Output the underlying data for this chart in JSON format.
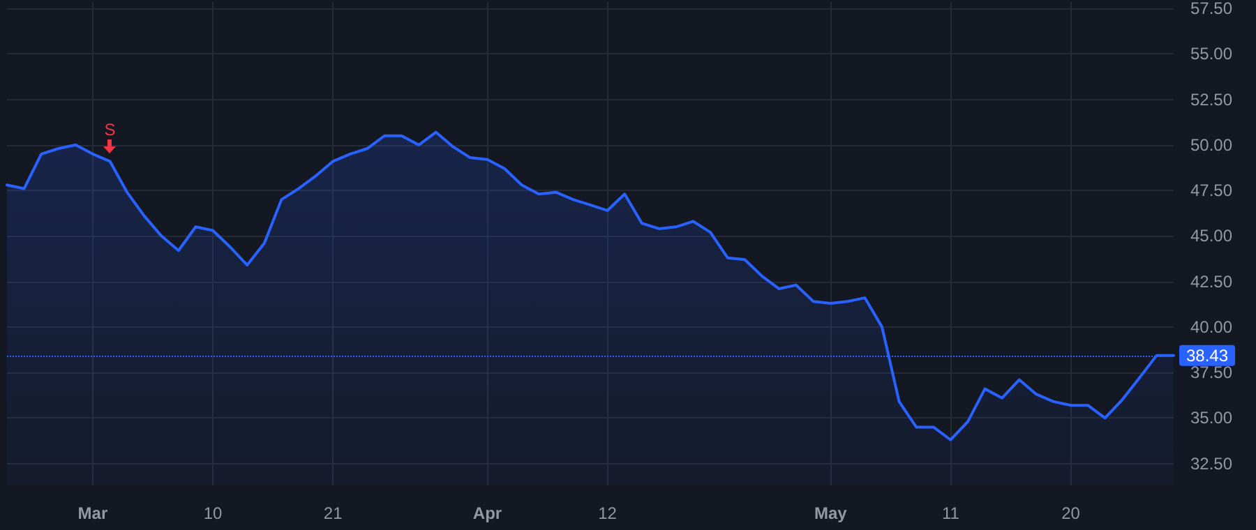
{
  "chart_data": {
    "type": "area",
    "categories": [
      null,
      null,
      null,
      null,
      null,
      "Mar",
      null,
      null,
      null,
      null,
      null,
      null,
      "10",
      null,
      null,
      null,
      null,
      null,
      null,
      "21",
      null,
      null,
      null,
      null,
      null,
      null,
      null,
      null,
      "Apr",
      null,
      null,
      null,
      null,
      null,
      null,
      "12",
      null,
      null,
      null,
      null,
      null,
      null,
      null,
      null,
      null,
      null,
      null,
      null,
      "May",
      null,
      null,
      null,
      null,
      null,
      null,
      "11",
      null,
      null,
      null,
      null,
      null,
      null,
      "20",
      null,
      null,
      null,
      null,
      null,
      null
    ],
    "series": [
      {
        "color": "#2962ff",
        "values": [
          47.8,
          47.6,
          49.5,
          49.8,
          50.0,
          49.5,
          49.1,
          47.4,
          46.1,
          45.0,
          44.2,
          45.5,
          45.3,
          44.4,
          43.4,
          44.6,
          47.0,
          47.6,
          48.3,
          49.1,
          49.5,
          49.8,
          50.5,
          50.5,
          50.0,
          50.7,
          49.9,
          49.3,
          49.2,
          48.7,
          47.8,
          47.3,
          47.4,
          47.0,
          46.7,
          46.4,
          47.3,
          45.7,
          45.4,
          45.5,
          45.8,
          45.2,
          43.8,
          43.7,
          42.8,
          42.1,
          42.3,
          41.4,
          41.3,
          41.4,
          41.6,
          40.0,
          35.9,
          34.5,
          34.5,
          33.8,
          34.8,
          36.6,
          36.1,
          37.1,
          36.3,
          35.9,
          35.7,
          35.7,
          35.0,
          36.0,
          37.2,
          38.43,
          38.43
        ]
      }
    ],
    "ylim": [
      31.3,
      57.85
    ],
    "yticks": [
      {
        "value": 32.5,
        "label": "32.50"
      },
      {
        "value": 35,
        "label": "35.00"
      },
      {
        "value": 37.5,
        "label": "37.50"
      },
      {
        "value": 40,
        "label": "40.00"
      },
      {
        "value": 42.5,
        "label": "42.50"
      },
      {
        "value": 45,
        "label": "45.00"
      },
      {
        "value": 47.5,
        "label": "47.50"
      },
      {
        "value": 50,
        "label": "50.00"
      },
      {
        "value": 52.5,
        "label": "52.50"
      },
      {
        "value": 55,
        "label": "55.00"
      },
      {
        "value": 57.5,
        "label": "57.50"
      }
    ],
    "ref_lines": [
      {
        "axis": "y",
        "value": 38.43,
        "label": "38.43",
        "color": "#2962ff",
        "line_style": "dotted"
      }
    ],
    "annotations": [
      {
        "text": "S",
        "y": 49.1
      }
    ],
    "grid": true,
    "marker": "none",
    "line_style": "solid"
  }
}
